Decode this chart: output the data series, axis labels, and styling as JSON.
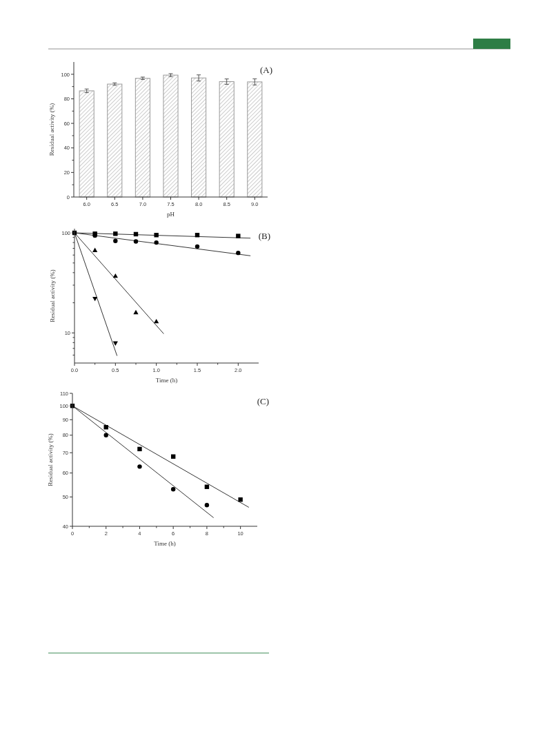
{
  "chart_data": [
    {
      "type": "bar",
      "categories": [
        "6.0",
        "6.5",
        "7.0",
        "7.5",
        "8.0",
        "8.5",
        "9.0"
      ],
      "values": [
        86.5,
        92,
        96.7,
        99.3,
        97,
        94,
        93.8
      ],
      "errors": [
        1.5,
        1,
        1,
        1.2,
        2.5,
        2.2,
        2.5
      ],
      "color": "#999999",
      "ylim": [
        0,
        110
      ],
      "yticks": [
        0,
        {
          "value": 10,
          "label": null
        },
        20,
        {
          "value": 30,
          "label": null
        },
        40,
        {
          "value": 50,
          "label": null
        },
        60,
        {
          "value": 70,
          "label": null
        },
        80,
        {
          "value": 90,
          "label": null
        },
        100
      ],
      "xlabel": "pH",
      "ylabel": "Residual activity (%)",
      "annotations": [
        "(A)"
      ]
    },
    {
      "type": "scatter",
      "log": "y",
      "xlim": [
        0,
        2.25
      ],
      "xticks": [
        {
          "value": 0,
          "label": "0.0"
        },
        {
          "value": 0.25,
          "label": null
        },
        0.5,
        {
          "value": 0.75,
          "label": null
        },
        {
          "value": 1,
          "label": "1.0"
        },
        {
          "value": 1.25,
          "label": null
        },
        1.5,
        {
          "value": 1.75,
          "label": null
        },
        {
          "value": 2,
          "label": "2.0"
        }
      ],
      "ylim": [
        5,
        110
      ],
      "yticks": [
        {
          "value": 6,
          "label": null
        },
        {
          "value": 7,
          "label": null
        },
        {
          "value": 8,
          "label": null
        },
        {
          "value": 9,
          "label": null
        },
        10,
        {
          "value": 20,
          "label": null
        },
        {
          "value": 30,
          "label": null
        },
        {
          "value": 40,
          "label": null
        },
        {
          "value": 50,
          "label": null
        },
        {
          "value": 60,
          "label": null
        },
        {
          "value": 70,
          "label": null
        },
        {
          "value": 80,
          "label": null
        },
        {
          "value": 90,
          "label": null
        },
        100
      ],
      "xlabel": "Time (h)",
      "ylabel": "Residual activity (%)",
      "annotations": [
        "(B)"
      ],
      "series": [
        {
          "type": "scatter",
          "marker": "square",
          "color": "#000000",
          "x": [
            0,
            0.25,
            0.5,
            0.75,
            1,
            1.5,
            2
          ],
          "values": [
            100,
            98,
            98,
            97,
            95,
            95,
            93
          ]
        },
        {
          "type": "scatter",
          "marker": "circle",
          "color": "#000000",
          "x": [
            0.25,
            0.5,
            0.75,
            1,
            1.5,
            2
          ],
          "values": [
            94,
            83,
            82,
            80,
            73,
            63
          ]
        },
        {
          "type": "scatter",
          "marker": "triangle",
          "color": "#000000",
          "x": [
            0.25,
            0.5,
            0.75,
            1
          ],
          "values": [
            67,
            37,
            16,
            13
          ]
        },
        {
          "type": "scatter",
          "marker": "triangle-down",
          "color": "#000000",
          "x": [
            0.25,
            0.5
          ],
          "values": [
            22,
            7.9
          ]
        },
        {
          "type": "line",
          "color": "#333333",
          "x": [
            0,
            2.15
          ],
          "values": [
            100,
            88.5
          ]
        },
        {
          "type": "line",
          "color": "#333333",
          "x": [
            0,
            2.15
          ],
          "values": [
            100,
            59
          ]
        },
        {
          "type": "line",
          "color": "#333333",
          "x": [
            0,
            1.09
          ],
          "values": [
            100,
            9.8
          ]
        },
        {
          "type": "line",
          "color": "#333333",
          "x": [
            0,
            0.52
          ],
          "values": [
            100,
            5.9
          ]
        }
      ]
    },
    {
      "type": "scatter",
      "log": "y",
      "xlim": [
        0,
        11
      ],
      "xticks": [
        0,
        {
          "value": 1,
          "label": null
        },
        2,
        {
          "value": 3,
          "label": null
        },
        4,
        {
          "value": 5,
          "label": null
        },
        6,
        {
          "value": 7,
          "label": null
        },
        8,
        {
          "value": 9,
          "label": null
        },
        10
      ],
      "ylim": [
        40,
        110
      ],
      "yticks": [
        40,
        50,
        60,
        70,
        80,
        90,
        100,
        110
      ],
      "xlabel": "Time (h)",
      "ylabel": "Residual activity (%)",
      "annotations": [
        "(C)"
      ],
      "series": [
        {
          "type": "scatter",
          "marker": "square",
          "color": "#000000",
          "x": [
            0,
            2,
            4,
            6,
            8,
            10
          ],
          "values": [
            100,
            85,
            72,
            68,
            54,
            49
          ]
        },
        {
          "type": "scatter",
          "marker": "circle",
          "color": "#000000",
          "x": [
            2,
            4,
            6,
            8
          ],
          "values": [
            80,
            63,
            53,
            47
          ]
        },
        {
          "type": "line",
          "color": "#333333",
          "x": [
            0,
            10.5
          ],
          "values": [
            100,
            46.2
          ]
        },
        {
          "type": "line",
          "color": "#333333",
          "x": [
            0,
            8.4
          ],
          "values": [
            100,
            42.7
          ]
        }
      ]
    }
  ]
}
